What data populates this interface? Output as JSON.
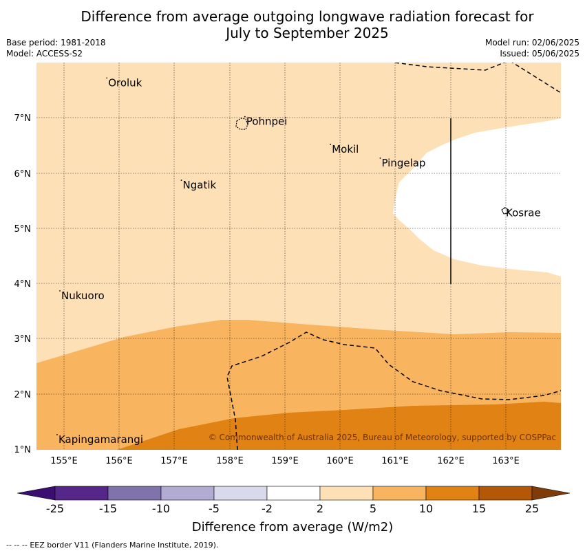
{
  "title_line1": "Difference from average outgoing longwave radiation forecast for",
  "title_line2": "July to September 2025",
  "base_period": "Base period: 1981-2018",
  "model": "Model: ACCESS-S2",
  "model_run": "Model run: 02/06/2025",
  "issued": "Issued: 05/06/2025",
  "copyright": "© Commonwealth of Australia 2025, Bureau of Meteorology, supported by COSPPac",
  "lon_ticks": [
    "155°E",
    "156°E",
    "157°E",
    "158°E",
    "159°E",
    "160°E",
    "161°E",
    "162°E",
    "163°E"
  ],
  "lat_ticks": [
    "7°N",
    "6°N",
    "5°N",
    "4°N",
    "3°N",
    "2°N",
    "1°N"
  ],
  "places": [
    {
      "name": "Oroluk",
      "lon": 155.8,
      "lat": 7.65
    },
    {
      "name": "Pohnpei",
      "lon": 158.3,
      "lat": 6.95
    },
    {
      "name": "Mokil",
      "lon": 159.85,
      "lat": 6.45
    },
    {
      "name": "Pingelap",
      "lon": 160.75,
      "lat": 6.2
    },
    {
      "name": "Ngatik",
      "lon": 157.15,
      "lat": 5.8
    },
    {
      "name": "Kosrae",
      "lon": 163.0,
      "lat": 5.3
    },
    {
      "name": "Nukuoro",
      "lon": 154.95,
      "lat": 3.8
    },
    {
      "name": "Kapingamarangi",
      "lon": 154.9,
      "lat": 1.2
    }
  ],
  "colorbar": {
    "ticks": [
      "-25",
      "-15",
      "-10",
      "-5",
      "-2",
      "2",
      "5",
      "10",
      "15",
      "25"
    ],
    "colors": [
      "#3b0f70",
      "#542788",
      "#8073ac",
      "#b2abd2",
      "#d8daeb",
      "#ffffff",
      "#fde0b6",
      "#f9b460",
      "#e08214",
      "#b35806",
      "#7f3b08"
    ],
    "label": "Difference from average (W/m2)"
  },
  "legend_symbol": "-- -- --",
  "legend_text": "EEZ border V11 (Flanders Marine Institute, 2019)."
}
